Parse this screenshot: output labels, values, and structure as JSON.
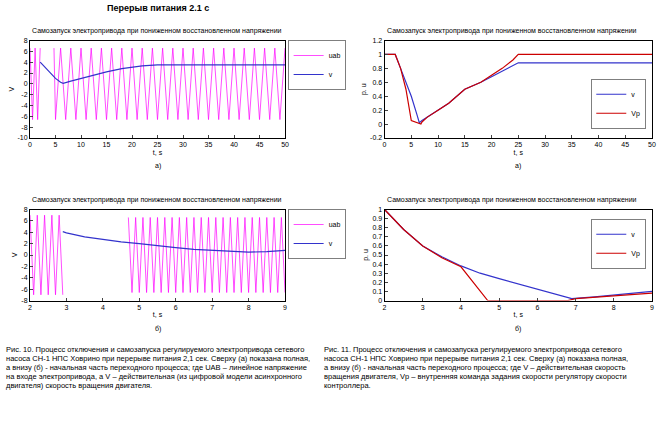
{
  "header": "Перерыв питания 2.1 с",
  "chart_data": [
    {
      "type": "line",
      "title": "Самозапуск электропривода при пониженном восстановленном напряжении",
      "annotations": [
        "а)"
      ],
      "x_label": "t, s",
      "y_label": "V",
      "xlim": [
        0,
        50
      ],
      "xticks": [
        0,
        5,
        10,
        15,
        20,
        25,
        30,
        35,
        40,
        45,
        50
      ],
      "ylim": [
        -10,
        8
      ],
      "yticks": [
        -10,
        -8,
        -6,
        -4,
        -2,
        0,
        2,
        4,
        6,
        8
      ],
      "grid": false,
      "legend": "right",
      "series": [
        {
          "name": "uab",
          "color": "#ff00ff",
          "line_style": "solid",
          "x": [
            0,
            0.5,
            1,
            1.5,
            2,
            2.1,
            4.7,
            5,
            6,
            7,
            8,
            9,
            10,
            11,
            12,
            13,
            14,
            15,
            16,
            17,
            18,
            19,
            20,
            21,
            22,
            23,
            24,
            25,
            26,
            27,
            28,
            29,
            30,
            31,
            32,
            33,
            34,
            35,
            36,
            37,
            38,
            39,
            40,
            41,
            42,
            43,
            44,
            45,
            46,
            47,
            48,
            49,
            50
          ],
          "values": [
            6.6,
            -6.6,
            6.6,
            -6.6,
            6.6,
            null,
            6.6,
            -6.6,
            6.6,
            -6.6,
            6.6,
            -6.6,
            6.6,
            -6.6,
            6.6,
            -6.6,
            6.6,
            -6.6,
            6.6,
            -6.6,
            6.6,
            -6.6,
            6.6,
            -6.6,
            6.6,
            -6.6,
            6.6,
            -6.6,
            6.6,
            -6.6,
            6.6,
            -6.6,
            6.6,
            -6.6,
            6.6,
            -6.6,
            6.6,
            -6.6,
            6.6,
            -6.6,
            6.6,
            -6.6,
            6.6,
            -6.6,
            6.6,
            -6.6,
            6.6,
            -6.6,
            6.6,
            -6.6,
            6.6,
            -6.6,
            6.6
          ]
        },
        {
          "name": "v",
          "color": "#3333cc",
          "line_style": "solid",
          "x": [
            2,
            3,
            4,
            5,
            6,
            6.5,
            8,
            10,
            12,
            15,
            18,
            20,
            22,
            25,
            30,
            40,
            50
          ],
          "values": [
            4.0,
            3.0,
            2.0,
            1.0,
            0.3,
            0.1,
            0.5,
            1.0,
            1.5,
            2.2,
            2.8,
            3.1,
            3.3,
            3.5,
            3.5,
            3.5,
            3.5
          ]
        }
      ]
    },
    {
      "type": "line",
      "title": "Самозапуск электропривода при пониженном восстановленном напряжении",
      "annotations": [
        "б)"
      ],
      "x_label": "t, s",
      "y_label": "V",
      "xlim": [
        2,
        9
      ],
      "xticks": [
        2,
        3,
        4,
        5,
        6,
        7,
        8,
        9
      ],
      "ylim": [
        -8,
        8
      ],
      "yticks": [
        -8,
        -6,
        -4,
        -2,
        0,
        2,
        4,
        6,
        8
      ],
      "grid": false,
      "legend": "right",
      "series": [
        {
          "name": "uab",
          "color": "#ff00ff",
          "line_style": "solid",
          "x": [
            2,
            2.1,
            2.2,
            2.3,
            2.4,
            2.5,
            2.6,
            2.7,
            2.8,
            2.9,
            2.95,
            4.7,
            4.8,
            4.9,
            5,
            5.1,
            5.2,
            5.3,
            5.4,
            5.5,
            5.6,
            5.7,
            5.8,
            5.9,
            6,
            6.1,
            6.2,
            6.3,
            6.4,
            6.5,
            6.6,
            6.7,
            6.8,
            6.9,
            7,
            7.1,
            7.2,
            7.3,
            7.4,
            7.5,
            7.6,
            7.7,
            7.8,
            7.9,
            8,
            8.1,
            8.2,
            8.3,
            8.4,
            8.5,
            8.6,
            8.7,
            8.8,
            8.9,
            9
          ],
          "values": [
            7,
            -7,
            7,
            -7,
            7,
            -7,
            7,
            -7,
            7,
            -7,
            null,
            6.6,
            -6.6,
            6.6,
            -6.6,
            6.6,
            -6.6,
            6.6,
            -6.6,
            6.6,
            -6.6,
            6.6,
            -6.6,
            6.6,
            -6.6,
            6.6,
            -6.6,
            6.6,
            -6.6,
            6.6,
            -6.6,
            6.6,
            -6.6,
            6.6,
            -6.6,
            6.6,
            -6.6,
            6.6,
            -6.6,
            6.6,
            -6.6,
            6.6,
            -6.6,
            6.6,
            -6.6,
            6.6,
            -6.6,
            6.6,
            -6.6,
            6.6,
            -6.6,
            6.6,
            -6.6,
            6.6,
            -6.6
          ]
        },
        {
          "name": "v",
          "color": "#3333cc",
          "line_style": "solid",
          "x": [
            2.9,
            3,
            3.5,
            4,
            4.5,
            5,
            5.5,
            6,
            6.5,
            7,
            7.5,
            8,
            8.5,
            9
          ],
          "values": [
            4.1,
            3.9,
            3.2,
            2.7,
            2.3,
            2.0,
            1.6,
            1.3,
            1.0,
            0.8,
            0.6,
            0.5,
            0.6,
            0.8
          ]
        }
      ]
    },
    {
      "type": "line",
      "title": "Самозапуск электропривода при пониженном восстановленном напряжении",
      "annotations": [
        "а)"
      ],
      "x_label": "t, s",
      "y_label": "p. u",
      "xlim": [
        0,
        50
      ],
      "xticks": [
        0,
        5,
        10,
        15,
        20,
        25,
        30,
        35,
        40,
        45,
        50
      ],
      "ylim": [
        -0.2,
        1.2
      ],
      "yticks": [
        -0.2,
        0,
        0.2,
        0.4,
        0.6,
        0.8,
        1,
        1.2
      ],
      "grid": false,
      "legend": "lower right",
      "series": [
        {
          "name": "v",
          "color": "#3333cc",
          "line_style": "solid",
          "x": [
            0,
            2,
            3,
            4,
            5,
            6,
            6.5,
            7,
            8,
            10,
            12,
            15,
            18,
            20,
            22,
            24,
            25,
            30,
            40,
            50
          ],
          "values": [
            1,
            1,
            0.8,
            0.6,
            0.4,
            0.15,
            0.02,
            0.05,
            0.1,
            0.2,
            0.3,
            0.5,
            0.6,
            0.68,
            0.76,
            0.85,
            0.88,
            0.88,
            0.88,
            0.88
          ]
        },
        {
          "name": "Vp",
          "color": "#cc0000",
          "line_style": "solid",
          "x": [
            0,
            2,
            3,
            4,
            5,
            6.8,
            7,
            8,
            10,
            12,
            15,
            18,
            20,
            22,
            24,
            25,
            30,
            40,
            50
          ],
          "values": [
            1,
            1,
            0.8,
            0.5,
            0.05,
            0,
            0.03,
            0.1,
            0.2,
            0.3,
            0.5,
            0.6,
            0.7,
            0.8,
            0.92,
            1,
            1,
            1,
            1
          ]
        }
      ]
    },
    {
      "type": "line",
      "title": "Самозапуск электропривода при пониженном восстановленном напряжении",
      "annotations": [
        "б)"
      ],
      "x_label": "t, s",
      "y_label": "p. u",
      "xlim": [
        2,
        9
      ],
      "xticks": [
        2,
        3,
        4,
        5,
        6,
        7,
        8,
        9
      ],
      "ylim": [
        0,
        1
      ],
      "yticks": [
        0,
        0.1,
        0.2,
        0.3,
        0.4,
        0.5,
        0.6,
        0.7,
        0.8,
        0.9,
        1
      ],
      "grid": false,
      "legend": "upper right",
      "series": [
        {
          "name": "v",
          "color": "#3333cc",
          "line_style": "solid",
          "x": [
            2,
            2.5,
            3,
            3.5,
            4,
            4.5,
            5,
            5.5,
            6,
            6.5,
            6.9,
            7.5,
            8,
            8.5,
            9
          ],
          "values": [
            1,
            0.78,
            0.6,
            0.48,
            0.38,
            0.3,
            0.24,
            0.18,
            0.12,
            0.06,
            0.02,
            0.04,
            0.06,
            0.08,
            0.1
          ]
        },
        {
          "name": "Vp",
          "color": "#cc0000",
          "line_style": "solid",
          "x": [
            2,
            2.5,
            3,
            3.5,
            4,
            4.5,
            4.7,
            5,
            6,
            6.8,
            7,
            8,
            9
          ],
          "values": [
            1,
            0.78,
            0.6,
            0.47,
            0.37,
            0.1,
            0,
            0,
            0,
            0,
            0.02,
            0.05,
            0.08
          ]
        }
      ]
    }
  ],
  "captions": [
    "Рис. 10. Процесс отключения и самозапуска регулируемого электропривода сетевого насоса СН-1 НПС Ховрино при перерыве питания 2,1 сек. Сверху (а) показана полная, а внизу (б) - начальная часть переходного процесса; где UAB – линейное напряжение на входе электропривода, а V – действительная (из цифровой модели асинхронного двигателя) скорость вращения двигателя.",
    "Рис. 11. Процесс отключения и самозапуска регулируемого электропривода сетевого насоса СН-1 НПС Ховрино при перерыве питания 2,1 сек. Сверху (а) показана полная, а внизу (б) - начальная часть переходного процесса; где V – действительная скорость вращения двигателя, Vp – внутренняя команда задания скорости регулятору скорости контроллера."
  ]
}
